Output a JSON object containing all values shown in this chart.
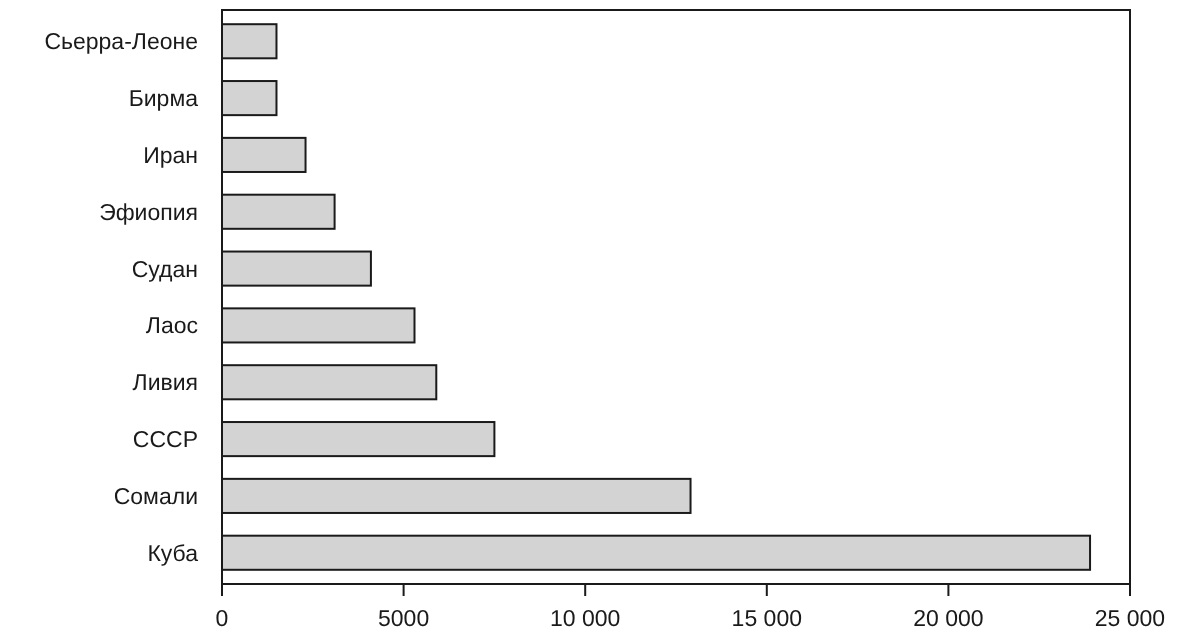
{
  "chart_data": {
    "type": "bar",
    "orientation": "horizontal",
    "categories": [
      "Сьерра-Леоне",
      "Бирма",
      "Иран",
      "Эфиопия",
      "Судан",
      "Лаос",
      "Ливия",
      "СССР",
      "Сомали",
      "Куба"
    ],
    "values": [
      1500,
      1500,
      2300,
      3100,
      4100,
      5300,
      5900,
      7500,
      12900,
      23900
    ],
    "color": "#d3d3d3",
    "xlim": [
      0,
      25000
    ],
    "xticks": [
      0,
      5000,
      {
        "value": 10000,
        "label": "10 000"
      },
      {
        "value": 15000,
        "label": "15 000"
      },
      {
        "value": 20000,
        "label": "20 000"
      },
      {
        "value": 25000,
        "label": "25 000"
      }
    ],
    "grid": false
  }
}
